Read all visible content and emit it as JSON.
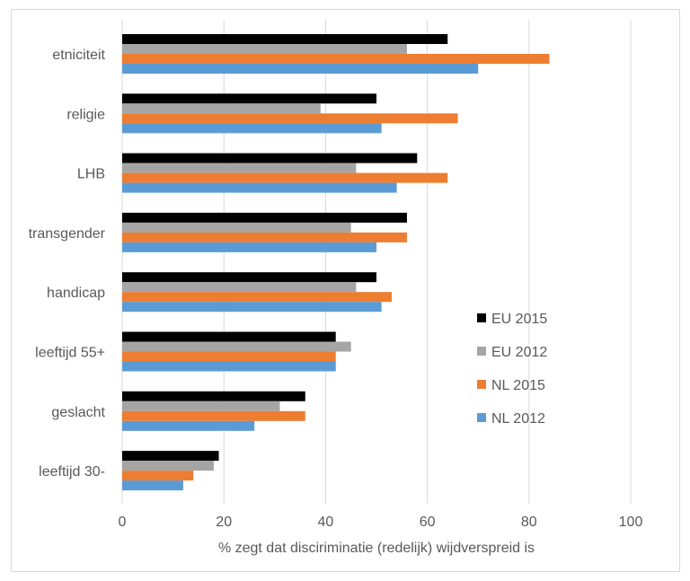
{
  "chart_data": {
    "type": "bar",
    "orientation": "horizontal",
    "title": "",
    "xlabel": "% zegt dat disciriminatie (redelijk) wijdverspreid is",
    "ylabel": "",
    "xlim": [
      0,
      100
    ],
    "xticks": [
      0,
      20,
      40,
      60,
      80,
      100
    ],
    "grid": true,
    "legend_position": "right",
    "categories": [
      "etniciteit",
      "religie",
      "LHB",
      "transgender",
      "handicap",
      "leeftijd 55+",
      "geslacht",
      "leeftijd 30-"
    ],
    "series": [
      {
        "name": "EU 2015",
        "color": "#000000",
        "values": [
          64,
          50,
          58,
          56,
          50,
          42,
          36,
          19
        ]
      },
      {
        "name": "EU 2012",
        "color": "#a5a5a5",
        "values": [
          56,
          39,
          46,
          45,
          46,
          45,
          31,
          18
        ]
      },
      {
        "name": "NL 2015",
        "color": "#ed7d31",
        "values": [
          84,
          66,
          64,
          56,
          53,
          42,
          36,
          14
        ]
      },
      {
        "name": "NL 2012",
        "color": "#5b9bd5",
        "values": [
          70,
          51,
          54,
          50,
          51,
          42,
          26,
          12
        ]
      }
    ]
  }
}
